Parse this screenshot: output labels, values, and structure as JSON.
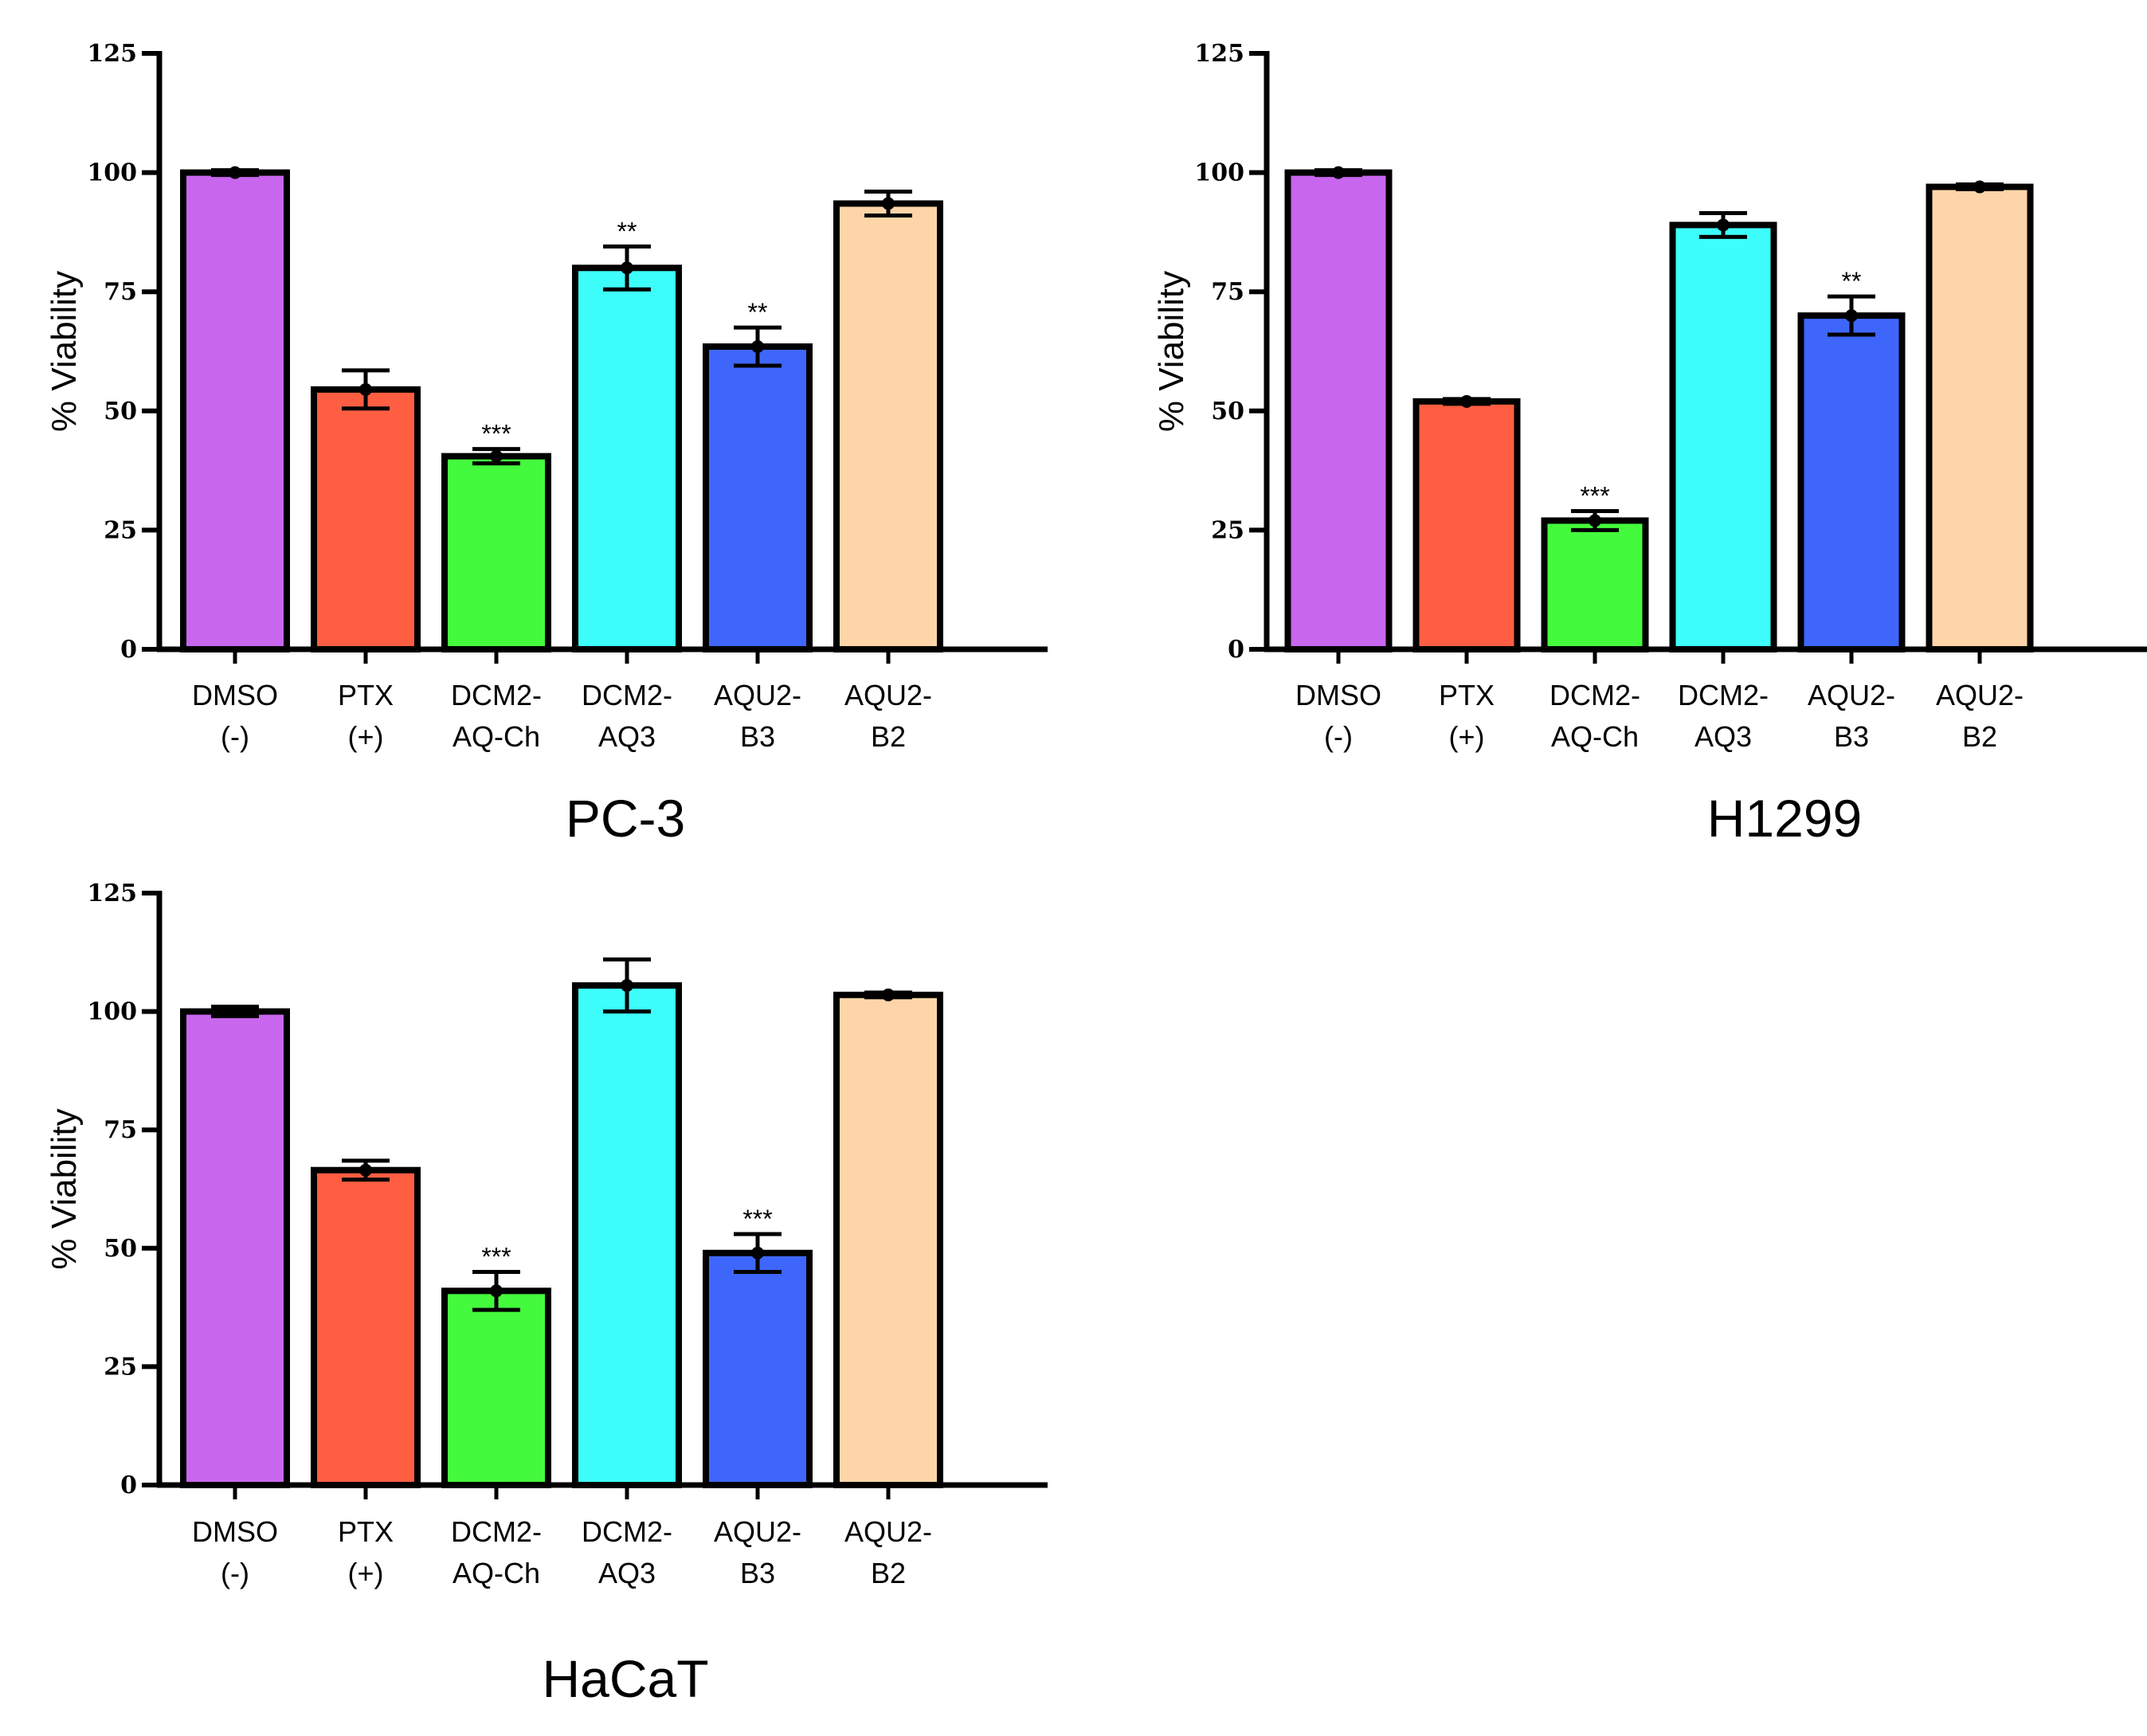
{
  "colors": {
    "DMSO (-)": "#c966ee",
    "PTX (+)": "#ff5e42",
    "DCM2-AQ-Ch": "#44fa3d",
    "DCM2-AQ3": "#3dfefa",
    "AQU2-B3": "#3e66fa",
    "AQU2-B2": "#fed5a8"
  },
  "chart_data": [
    {
      "type": "bar",
      "title": "PC-3",
      "ylabel": "% Viability",
      "xlabel": "",
      "ylim": [
        0,
        125
      ],
      "yticks": [
        0,
        25,
        50,
        75,
        100,
        125
      ],
      "categories": [
        "DMSO (-)",
        "PTX (+)",
        "DCM2-AQ-Ch",
        "DCM2-AQ3",
        "AQU2-B3",
        "AQU2-B2"
      ],
      "category_lines": [
        [
          "DMSO",
          "(-)"
        ],
        [
          "PTX",
          "(+)"
        ],
        [
          "DCM2-",
          "AQ-Ch"
        ],
        [
          "DCM2-",
          "AQ3"
        ],
        [
          "AQU2-",
          "B3"
        ],
        [
          "AQU2-",
          "B2"
        ]
      ],
      "values": [
        100,
        54.5,
        40.5,
        80,
        63.5,
        93.5
      ],
      "error": [
        0.5,
        4,
        1.5,
        4.5,
        4,
        2.5
      ],
      "significance": [
        "",
        "",
        "***",
        "**",
        "**",
        ""
      ]
    },
    {
      "type": "bar",
      "title": "H1299",
      "ylabel": "% Viability",
      "xlabel": "",
      "ylim": [
        0,
        125
      ],
      "yticks": [
        0,
        25,
        50,
        75,
        100,
        125
      ],
      "categories": [
        "DMSO (-)",
        "PTX (+)",
        "DCM2-AQ-Ch",
        "DCM2-AQ3",
        "AQU2-B3",
        "AQU2-B2"
      ],
      "category_lines": [
        [
          "DMSO",
          "(-)"
        ],
        [
          "PTX",
          "(+)"
        ],
        [
          "DCM2-",
          "AQ-Ch"
        ],
        [
          "DCM2-",
          "AQ3"
        ],
        [
          "AQU2-",
          "B3"
        ],
        [
          "AQU2-",
          "B2"
        ]
      ],
      "values": [
        100,
        52,
        27,
        89,
        70,
        97
      ],
      "error": [
        0.5,
        0.5,
        2,
        2.5,
        4,
        0.5
      ],
      "significance": [
        "",
        "",
        "***",
        "",
        "**",
        ""
      ]
    },
    {
      "type": "bar",
      "title": "HaCaT",
      "ylabel": "% Viability",
      "xlabel": "",
      "ylim": [
        0,
        125
      ],
      "yticks": [
        0,
        25,
        50,
        75,
        100,
        125
      ],
      "categories": [
        "DMSO (-)",
        "PTX (+)",
        "DCM2-AQ-Ch",
        "DCM2-AQ3",
        "AQU2-B3",
        "AQU2-B2"
      ],
      "category_lines": [
        [
          "DMSO",
          "(-)"
        ],
        [
          "PTX",
          "(+)"
        ],
        [
          "DCM2-",
          "AQ-Ch"
        ],
        [
          "DCM2-",
          "AQ3"
        ],
        [
          "AQU2-",
          "B3"
        ],
        [
          "AQU2-",
          "B2"
        ]
      ],
      "values": [
        100,
        66.5,
        41,
        105.5,
        49,
        103.5
      ],
      "error": [
        1,
        2,
        4,
        5.5,
        4,
        0.5
      ],
      "significance": [
        "",
        "",
        "***",
        "",
        "***",
        ""
      ]
    }
  ]
}
